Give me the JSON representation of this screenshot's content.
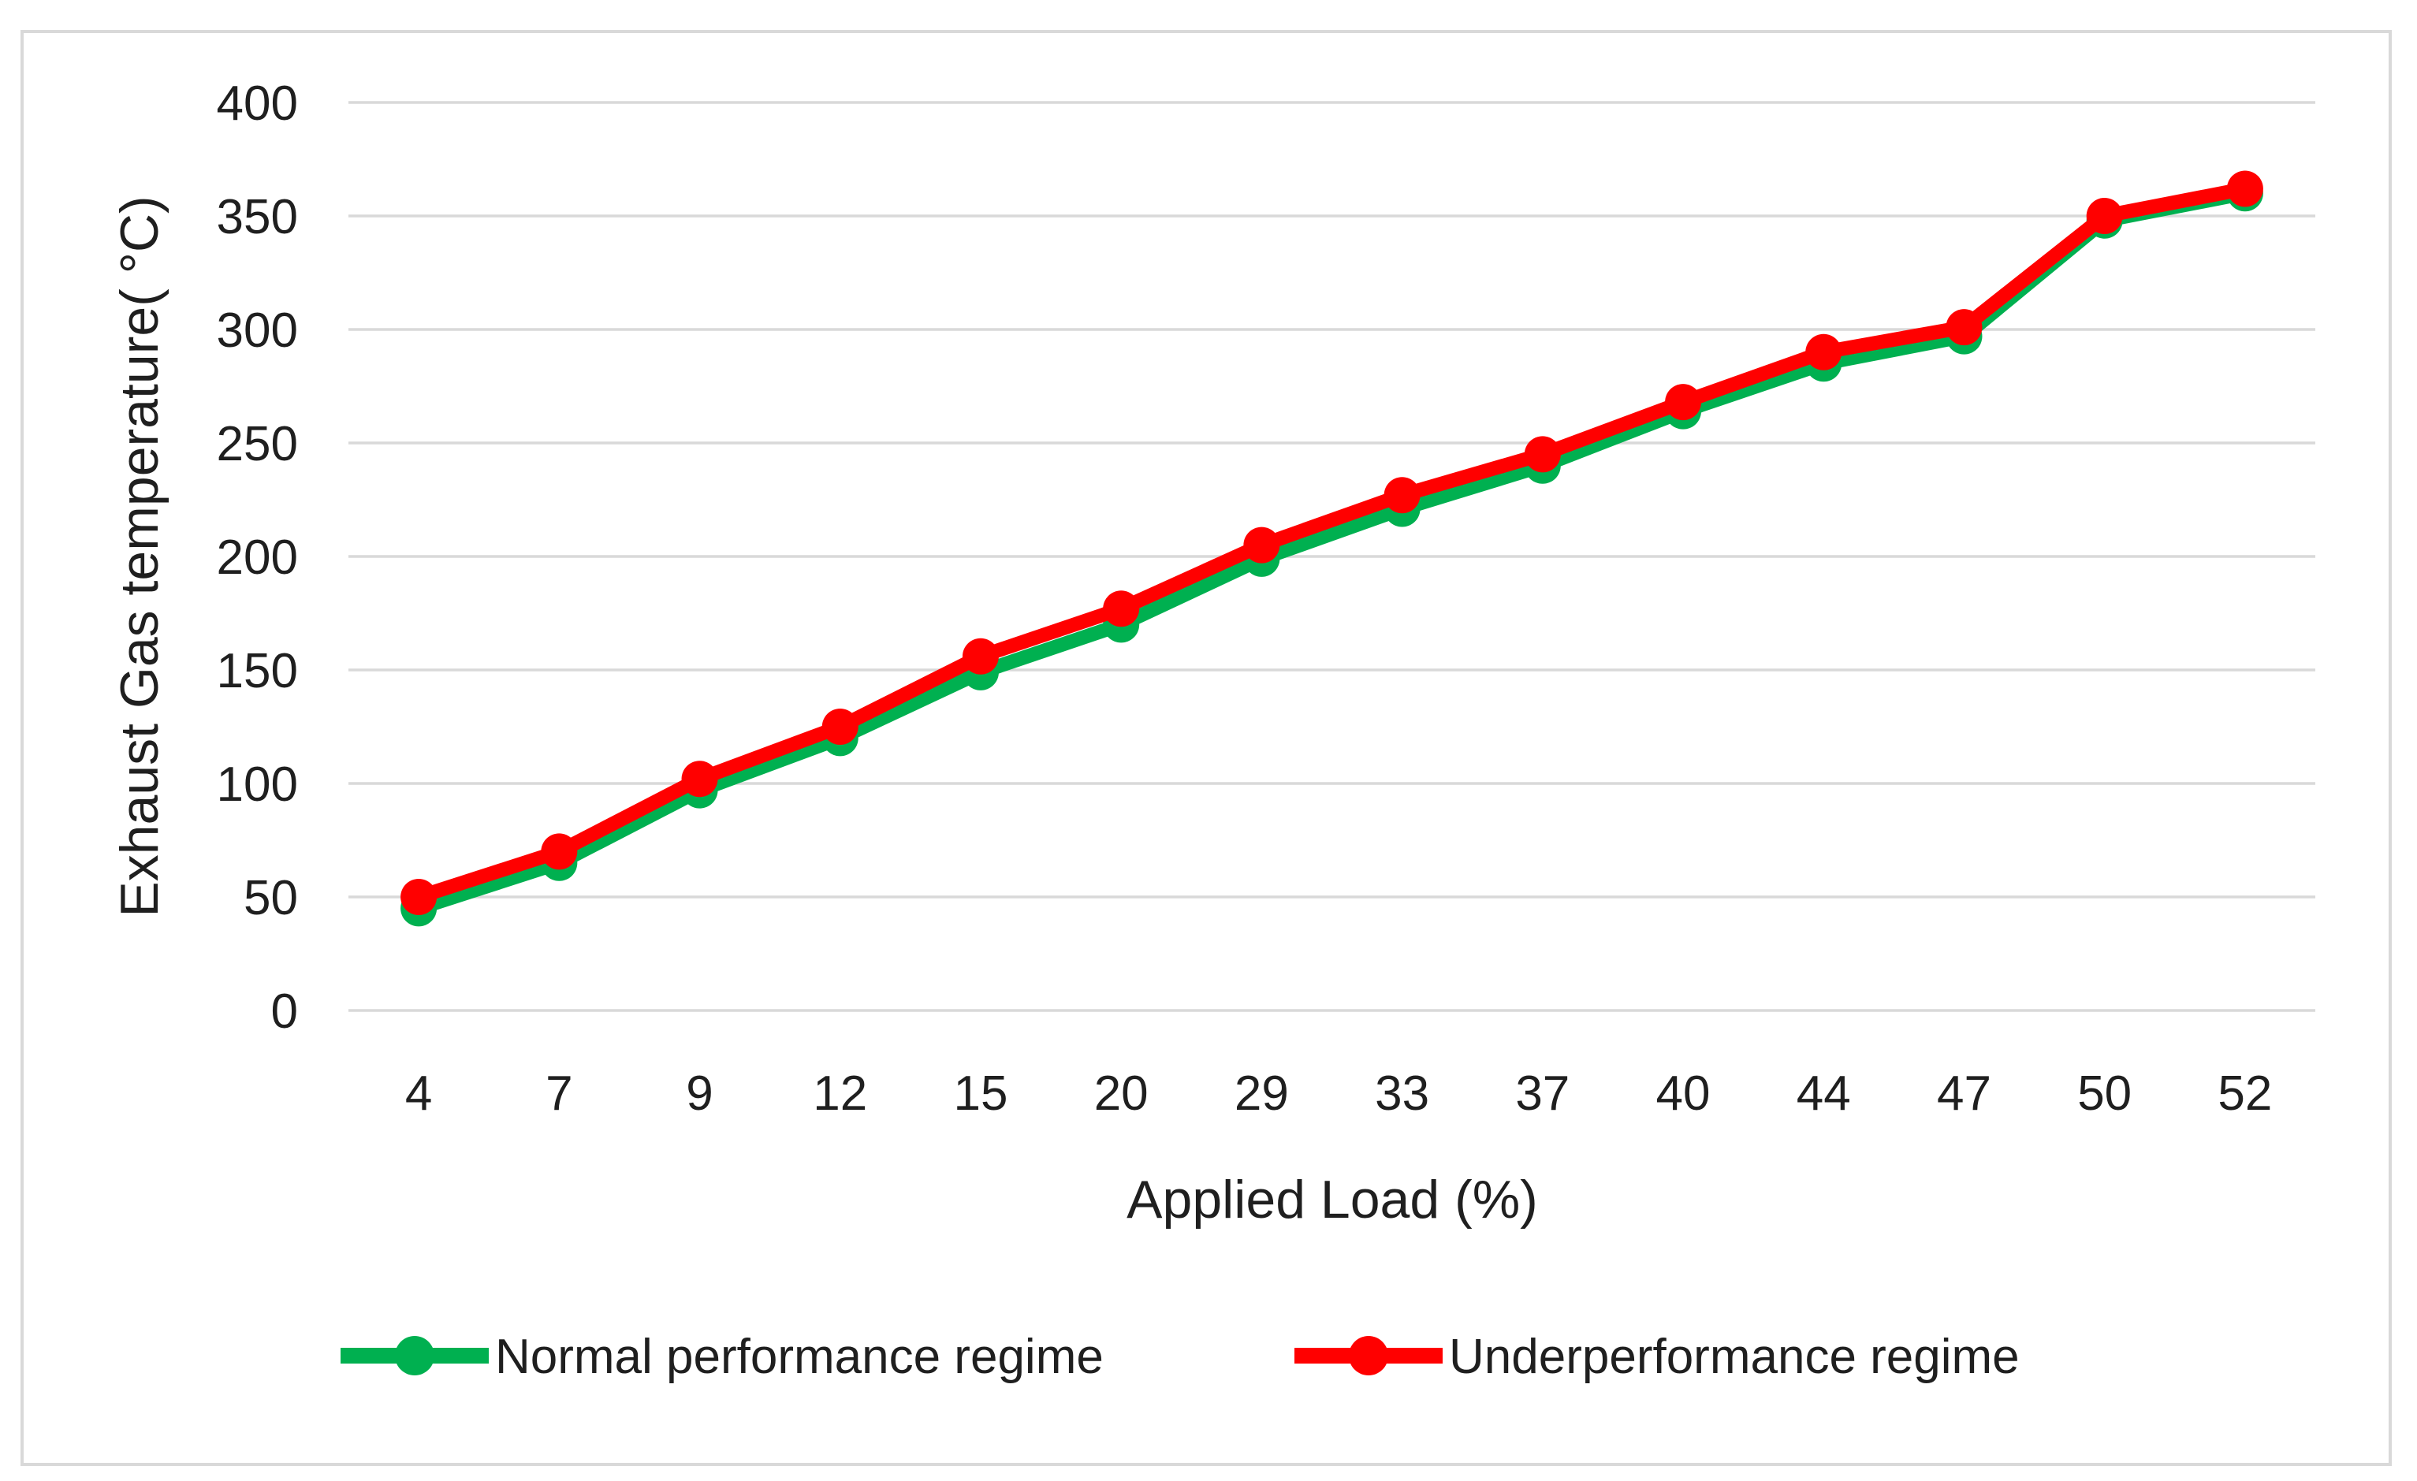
{
  "chart_data": {
    "type": "line",
    "title": "",
    "xlabel": "Applied Load (%)",
    "ylabel": "Exhaust Gas temperature( °C)",
    "categories": [
      4,
      7,
      9,
      12,
      15,
      20,
      29,
      33,
      37,
      40,
      44,
      47,
      50,
      52
    ],
    "yticks": [
      0,
      50,
      100,
      150,
      200,
      250,
      300,
      350,
      400
    ],
    "ylim": [
      0,
      400
    ],
    "grid": "horizontal-only",
    "legend_position": "bottom",
    "series": [
      {
        "name": "Normal performance regime",
        "color": "#00B050",
        "marker": "circle",
        "values": [
          45,
          65,
          97,
          120,
          149,
          170,
          199,
          221,
          240,
          264,
          285,
          297,
          348,
          360
        ]
      },
      {
        "name": "Underperformance regime",
        "color": "#FF0000",
        "marker": "circle",
        "values": [
          50,
          70,
          102,
          125,
          156,
          177,
          205,
          227,
          245,
          268,
          290,
          301,
          350,
          362
        ]
      }
    ],
    "colors": {
      "background": "#FFFFFF",
      "gridline": "#D9D9D9",
      "frame_border": "#D9D9D9",
      "text": "#1F1F1F"
    }
  }
}
